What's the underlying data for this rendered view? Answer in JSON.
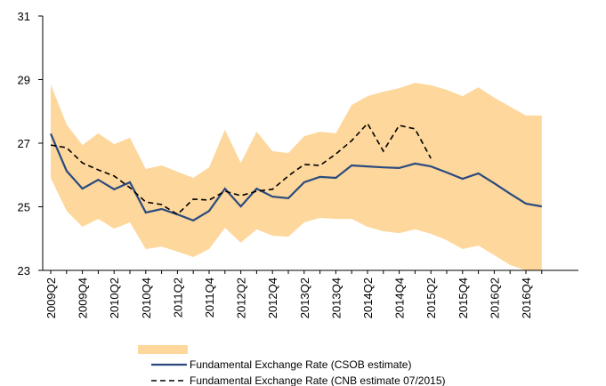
{
  "chart_data": {
    "type": "line",
    "categories": [
      "2009Q2",
      null,
      "2009Q4",
      null,
      "2010Q2",
      null,
      "2010Q4",
      null,
      "2011Q2",
      null,
      "2011Q4",
      null,
      "2012Q2",
      null,
      "2012Q4",
      null,
      "2013Q2",
      null,
      "2013Q4",
      null,
      "2014Q2",
      null,
      "2014Q4",
      null,
      "2015Q2",
      null,
      "2015Q4",
      null,
      "2016Q2",
      null,
      "2016Q4",
      null
    ],
    "band": {
      "color": "#fdd79b",
      "upper": [
        28.85,
        27.59,
        26.94,
        27.31,
        26.97,
        27.17,
        26.19,
        26.3,
        26.1,
        25.91,
        26.24,
        27.42,
        26.38,
        27.36,
        26.75,
        26.69,
        27.22,
        27.36,
        27.31,
        28.2,
        28.48,
        28.62,
        28.73,
        28.9,
        28.82,
        28.68,
        28.48,
        28.76,
        28.43,
        28.15,
        27.87,
        27.87
      ],
      "lower": [
        25.91,
        24.87,
        24.37,
        24.62,
        24.31,
        24.51,
        23.67,
        23.75,
        23.59,
        23.42,
        23.67,
        24.34,
        23.87,
        24.29,
        24.09,
        24.06,
        24.51,
        24.65,
        24.62,
        24.62,
        24.37,
        24.23,
        24.17,
        24.29,
        24.15,
        23.95,
        23.67,
        23.78,
        23.48,
        23.17,
        23,
        23
      ]
    },
    "series": [
      {
        "name": "Fundamental Exchange Rate (CSOB estimate)",
        "color": "#2a4a7f",
        "dash": false,
        "values": [
          27.3,
          26.13,
          25.57,
          25.85,
          25.55,
          25.77,
          24.82,
          24.93,
          24.76,
          24.57,
          24.87,
          25.57,
          25.01,
          25.57,
          25.32,
          25.27,
          25.77,
          25.94,
          25.91,
          26.3,
          26.27,
          26.24,
          26.22,
          26.36,
          26.27,
          26.08,
          25.88,
          26.05,
          25.74,
          25.41,
          25.1,
          25.01
        ]
      },
      {
        "name": "Fundamental Exchange Rate (CNB estimate 07/2015)",
        "color": "#000000",
        "dash": true,
        "values": [
          26.94,
          26.86,
          26.38,
          26.16,
          25.97,
          25.6,
          25.15,
          25.07,
          24.76,
          25.24,
          25.21,
          25.49,
          25.35,
          25.49,
          25.55,
          25.97,
          26.33,
          26.3,
          26.66,
          27.08,
          27.62,
          26.75,
          27.56,
          27.45,
          26.52,
          null,
          null,
          null,
          null,
          null,
          null,
          null
        ]
      }
    ],
    "ylim": [
      23,
      31
    ],
    "yticks": [
      23,
      25,
      27,
      29,
      31
    ],
    "grid": false
  }
}
